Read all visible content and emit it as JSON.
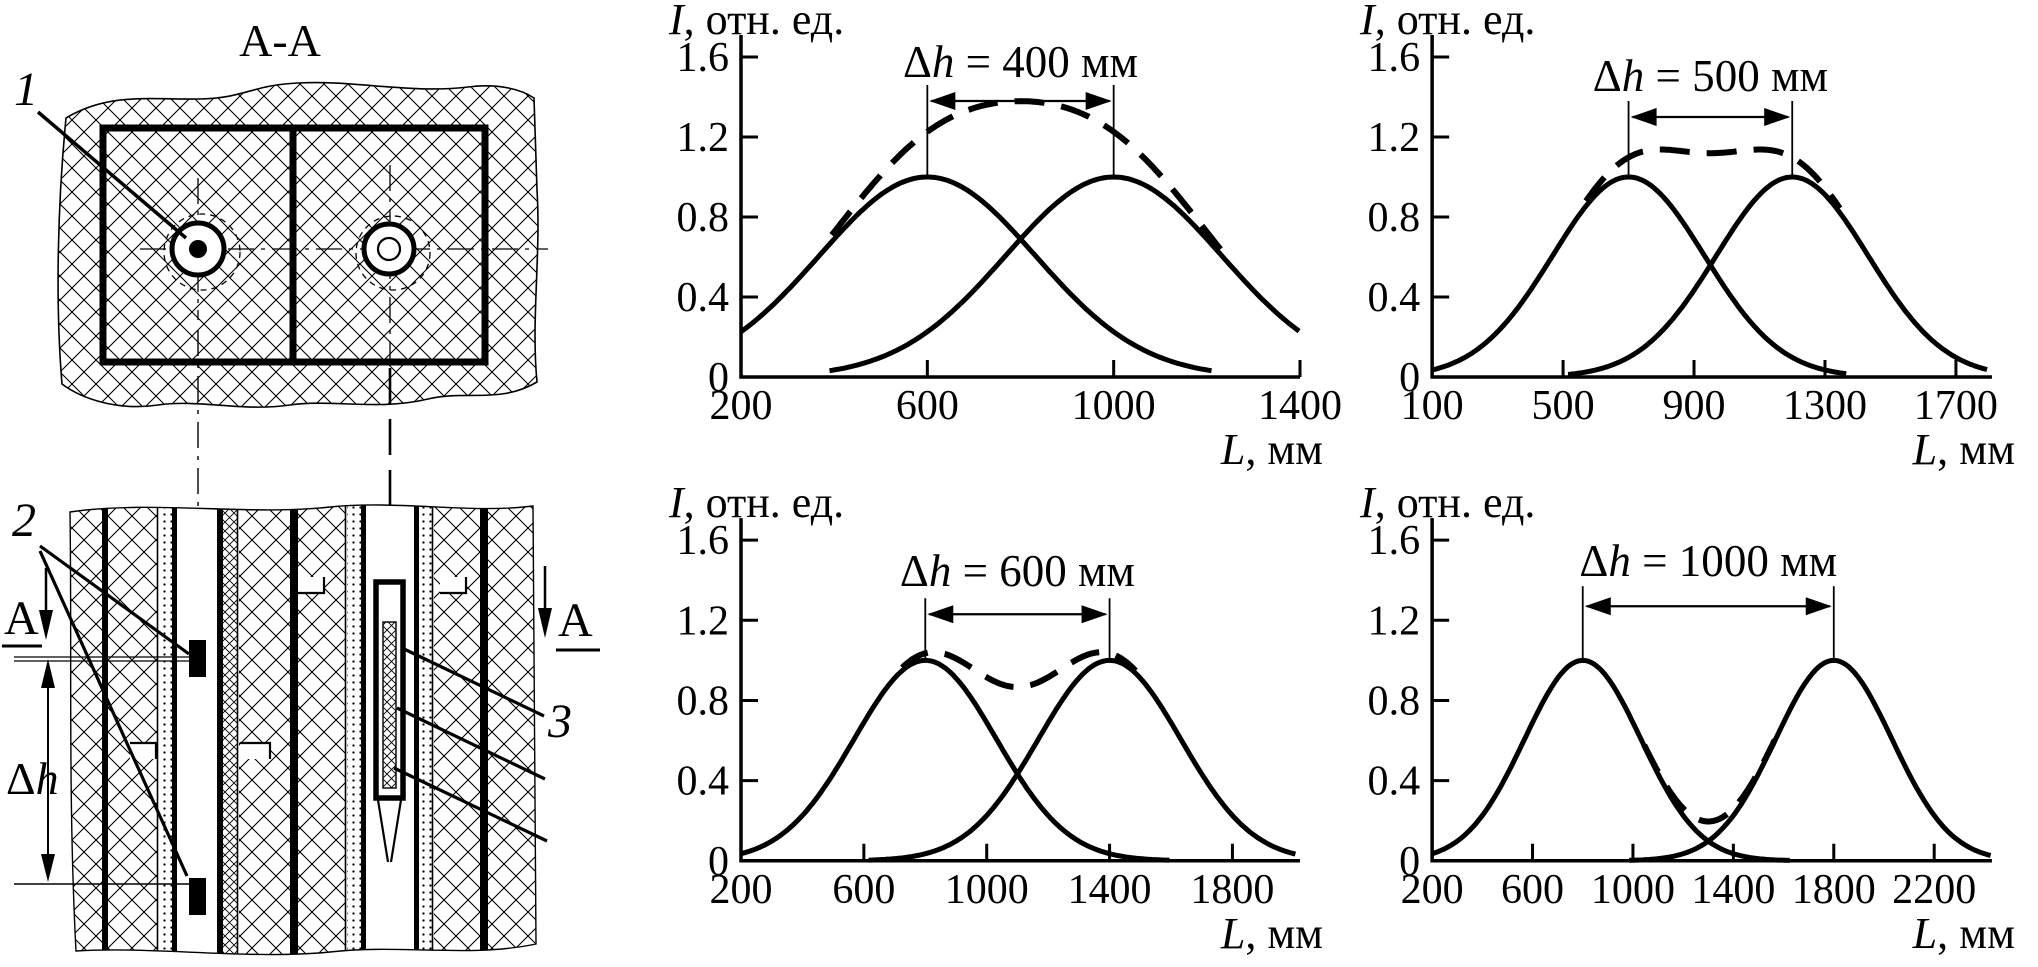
{
  "figure": {
    "left_panel": {
      "section_view_title": "A-A",
      "part_label_1": "1",
      "part_label_2": "2",
      "part_label_3": "3",
      "dim_delta": "Δ",
      "dim_var": "h",
      "section_letter": "A"
    },
    "colors": {
      "ink": "#000000",
      "paper": "#ffffff"
    }
  },
  "chart_data": [
    {
      "type": "line",
      "name": "response-dh-400",
      "title": {
        "prefix": "Δ",
        "var": "h",
        "rest": " = 400 мм"
      },
      "ylabel": {
        "var": "I",
        "rest": ", отн. ед."
      },
      "xlabel": {
        "var": "L",
        "rest": ", мм"
      },
      "ylim": [
        0,
        1.6
      ],
      "y_ticks": [
        0,
        0.4,
        0.8,
        1.2,
        1.6
      ],
      "y_tick_labels": [
        "0",
        "0.4",
        "0.8",
        "1.2",
        "1.6"
      ],
      "x_ticks": [
        200,
        600,
        1000,
        1400
      ],
      "xlim": [
        200,
        1400
      ],
      "grid": false,
      "legend": "none",
      "axis_style": "L-frame",
      "series": [
        {
          "name": "source-1-response",
          "style": "solid",
          "peak": 600,
          "sigma": 232,
          "amplitude": 1.0,
          "range": [
            200,
            1210
          ]
        },
        {
          "name": "source-2-response",
          "style": "solid",
          "peak": 1000,
          "sigma": 232,
          "amplitude": 1.0,
          "range": [
            390,
            1398
          ]
        },
        {
          "name": "summed-response",
          "style": "dashed",
          "sum_of": [
            0,
            1
          ],
          "range": [
            395,
            1235
          ]
        }
      ],
      "markers": {
        "x": [
          600,
          1000
        ],
        "top": 1.46,
        "arrow_y": 1.38,
        "title_y": 1.5
      }
    },
    {
      "type": "line",
      "name": "response-dh-500",
      "title": {
        "prefix": "Δ",
        "var": "h",
        "rest": " = 500 мм"
      },
      "ylabel": {
        "var": "I",
        "rest": ", отн. ед."
      },
      "xlabel": {
        "var": "L",
        "rest": ", мм"
      },
      "ylim": [
        0,
        1.6
      ],
      "y_ticks": [
        0,
        0.4,
        0.8,
        1.2,
        1.6
      ],
      "y_tick_labels": [
        "0",
        "0.4",
        "0.8",
        "1.2",
        "1.6"
      ],
      "x_ticks": [
        100,
        500,
        900,
        1300,
        1700
      ],
      "xlim": [
        100,
        1810
      ],
      "grid": false,
      "legend": "none",
      "axis_style": "L-frame",
      "series": [
        {
          "name": "source-1-response",
          "style": "solid",
          "peak": 700,
          "sigma": 232,
          "amplitude": 1.0,
          "range": [
            100,
            1365
          ]
        },
        {
          "name": "source-2-response",
          "style": "solid",
          "peak": 1200,
          "sigma": 232,
          "amplitude": 1.0,
          "range": [
            515,
            1795
          ]
        },
        {
          "name": "summed-response",
          "style": "dashed",
          "sum_of": [
            0,
            1
          ],
          "range": [
            570,
            1345
          ]
        }
      ],
      "markers": {
        "x": [
          700,
          1200
        ],
        "top": 1.38,
        "arrow_y": 1.3,
        "title_y": 1.43
      }
    },
    {
      "type": "line",
      "name": "response-dh-600",
      "title": {
        "prefix": "Δ",
        "var": "h",
        "rest": " = 600 мм"
      },
      "ylabel": {
        "var": "I",
        "rest": ", отн. ед."
      },
      "xlabel": {
        "var": "L",
        "rest": ", мм"
      },
      "ylim": [
        0,
        1.6
      ],
      "y_ticks": [
        0,
        0.4,
        0.8,
        1.2,
        1.6
      ],
      "y_tick_labels": [
        "0",
        "0.4",
        "0.8",
        "1.2",
        "1.6"
      ],
      "x_ticks": [
        200,
        600,
        1000,
        1400,
        1800
      ],
      "xlim": [
        200,
        2020
      ],
      "grid": false,
      "legend": "none",
      "axis_style": "L-frame",
      "series": [
        {
          "name": "source-1-response",
          "style": "solid",
          "peak": 800,
          "sigma": 232,
          "amplitude": 1.0,
          "range": [
            200,
            1595
          ]
        },
        {
          "name": "source-2-response",
          "style": "solid",
          "peak": 1400,
          "sigma": 232,
          "amplitude": 1.0,
          "range": [
            615,
            2005
          ]
        },
        {
          "name": "summed-response",
          "style": "dashed",
          "sum_of": [
            0,
            1
          ],
          "range": [
            725,
            1485
          ]
        }
      ],
      "markers": {
        "x": [
          800,
          1400
        ],
        "top": 1.31,
        "arrow_y": 1.23,
        "title_y": 1.37
      }
    },
    {
      "type": "line",
      "name": "response-dh-1000",
      "title": {
        "prefix": "Δ",
        "var": "h",
        "rest": " = 1000 мм"
      },
      "ylabel": {
        "var": "I",
        "rest": ", отн. ед."
      },
      "xlabel": {
        "var": "L",
        "rest": ", мм"
      },
      "ylim": [
        0,
        1.6
      ],
      "y_ticks": [
        0,
        0.4,
        0.8,
        1.2,
        1.6
      ],
      "y_tick_labels": [
        "0",
        "0.4",
        "0.8",
        "1.2",
        "1.6"
      ],
      "x_ticks": [
        200,
        600,
        1000,
        1400,
        1800,
        2200
      ],
      "xlim": [
        200,
        2430
      ],
      "grid": false,
      "legend": "none",
      "axis_style": "L-frame",
      "series": [
        {
          "name": "source-1-response",
          "style": "solid",
          "peak": 800,
          "sigma": 232,
          "amplitude": 1.0,
          "range": [
            200,
            1625
          ]
        },
        {
          "name": "source-2-response",
          "style": "solid",
          "peak": 1800,
          "sigma": 232,
          "amplitude": 1.0,
          "range": [
            985,
            2425
          ]
        },
        {
          "name": "summed-response",
          "style": "dashed",
          "sum_of": [
            0,
            1
          ],
          "range": [
            1045,
            1565
          ]
        }
      ],
      "markers": {
        "x": [
          800,
          1800
        ],
        "top": 1.37,
        "arrow_y": 1.27,
        "title_y": 1.42
      }
    }
  ]
}
